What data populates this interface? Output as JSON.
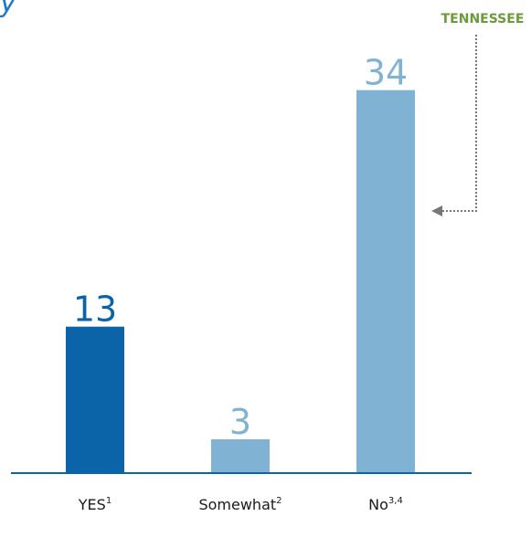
{
  "header_fragment": "y",
  "callout": {
    "label": "TENNESSEE",
    "color": "#6a9a3a",
    "arrow_color": "#777777",
    "target_category": "No"
  },
  "colors": {
    "highlight": "#0b63a8",
    "default": "#80b3d3",
    "baseline": "#0b63a8"
  },
  "chart_data": {
    "type": "bar",
    "categories": [
      "YES",
      "Somewhat",
      "No"
    ],
    "category_superscripts": [
      "1",
      "2",
      "3,4"
    ],
    "values": [
      13,
      3,
      34
    ],
    "highlighted_index": 0,
    "ylim": [
      0,
      36
    ],
    "grid": false,
    "legend": "none"
  }
}
